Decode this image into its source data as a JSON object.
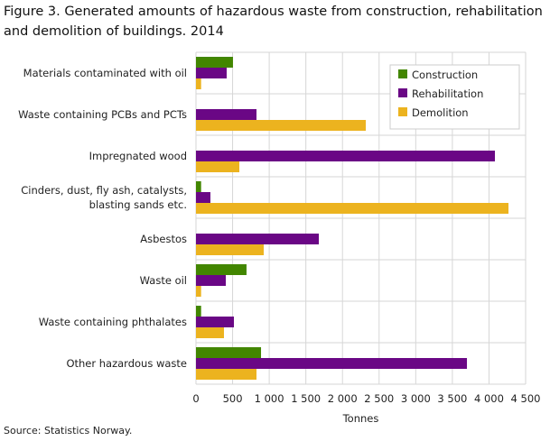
{
  "chart_data": {
    "type": "bar",
    "orientation": "horizontal",
    "title": "Figure 3. Generated amounts of hazardous waste  from construction, rehabilitation and demolition of buildings. 2014",
    "xlabel": "Tonnes",
    "xlim": [
      0,
      4500
    ],
    "xticks": [
      0,
      500,
      1000,
      1500,
      2000,
      2500,
      3000,
      3500,
      4000,
      4500
    ],
    "xtick_labels": [
      "0",
      "500",
      "1 000",
      "1 500",
      "2 000",
      "2 500",
      "3 000",
      "3 500",
      "4 000",
      "4 500"
    ],
    "grid": true,
    "legend_position": "top-right",
    "categories": [
      [
        "Materials contaminated with oil"
      ],
      [
        "Waste containing PCBs and PCTs"
      ],
      [
        "Impregnated wood"
      ],
      [
        "Cinders, dust, fly ash, catalysts,",
        "blasting sands etc."
      ],
      [
        "Asbestos"
      ],
      [
        "Waste oil"
      ],
      [
        "Waste containing phthalates"
      ],
      [
        "Other hazardous waste"
      ]
    ],
    "series": [
      {
        "name": "Construction",
        "color": "#428600",
        "values": [
          505,
          0,
          0,
          70,
          0,
          690,
          70,
          888
        ]
      },
      {
        "name": "Rehabilitation",
        "color": "#6a0785",
        "values": [
          419,
          826,
          4081,
          197,
          1677,
          407,
          518,
          3699
        ]
      },
      {
        "name": "Demolition",
        "color": "#ecb31f",
        "values": [
          70,
          2318,
          592,
          4266,
          925,
          70,
          382,
          826
        ]
      }
    ]
  },
  "source": "Source: Statistics Norway."
}
